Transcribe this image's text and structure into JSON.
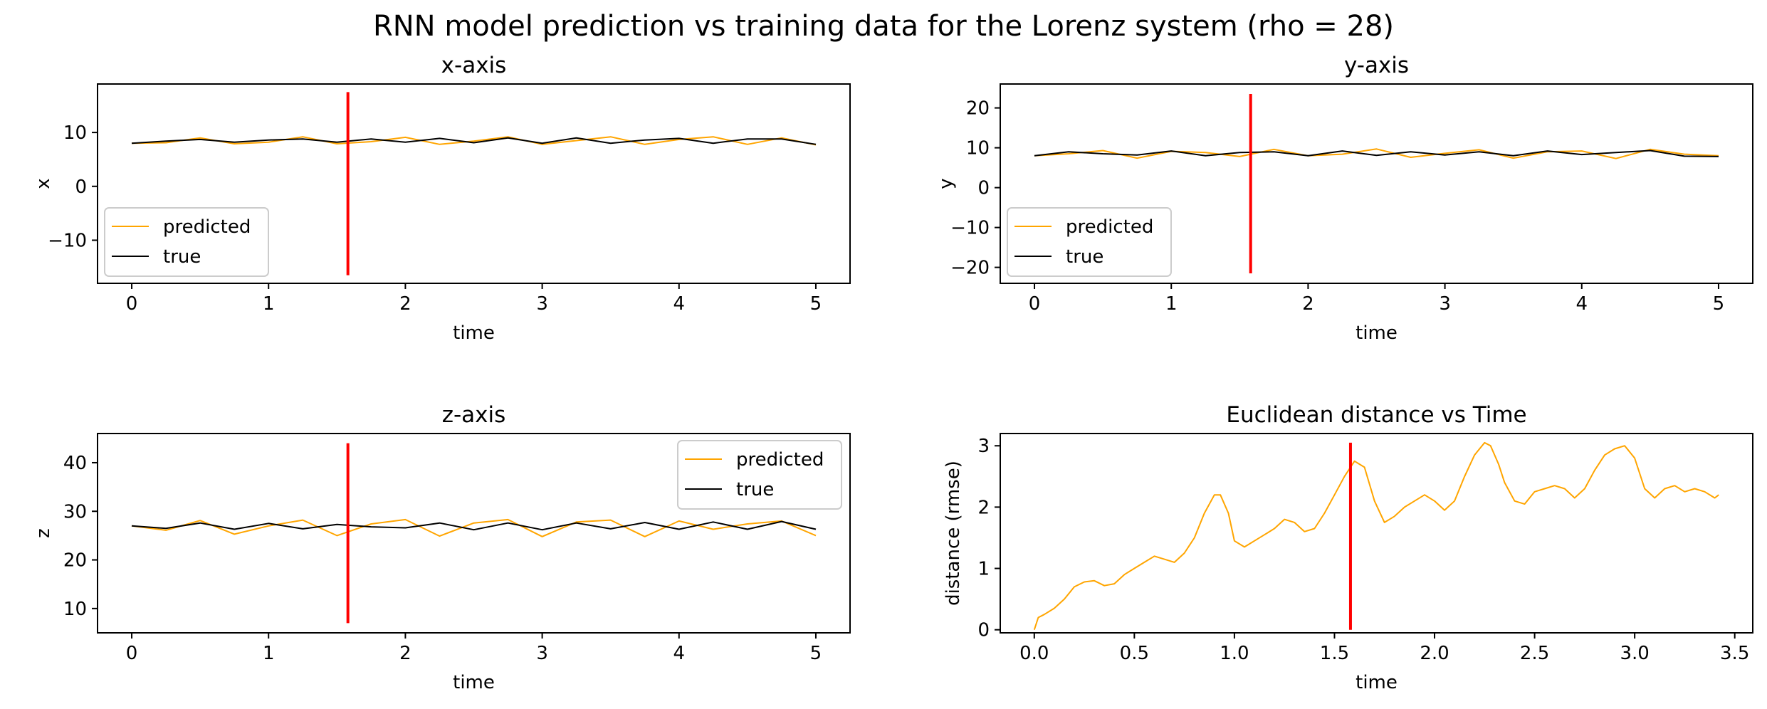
{
  "figure": {
    "suptitle": "RNN model prediction vs training data for the Lorenz system (rho = 28)",
    "colors": {
      "predicted": "#ffa500",
      "true": "#000000",
      "marker": "#ff0000"
    }
  },
  "chart_data": [
    {
      "type": "line",
      "title": "x-axis",
      "xlabel": "time",
      "ylabel": "x",
      "xlim": [
        -0.25,
        5.25
      ],
      "ylim": [
        -18,
        19
      ],
      "xticks": [
        0,
        1,
        2,
        3,
        4,
        5
      ],
      "yticks": [
        -10,
        0,
        10
      ],
      "ytick_labels": [
        "−10",
        "0",
        "10"
      ],
      "grid": false,
      "legend": "lower-left",
      "vline": {
        "x": 1.58,
        "y": [
          -16.5,
          17.5
        ]
      },
      "series": [
        {
          "name": "predicted",
          "color": "#ffa500",
          "x": [
            0,
            0.25,
            0.5,
            0.75,
            1,
            1.25,
            1.5,
            1.75,
            2,
            2.25,
            2.5,
            2.75,
            3,
            3.25,
            3.5,
            3.75,
            4,
            4.25,
            4.5,
            4.75,
            5
          ],
          "y": [
            8.0,
            8.1,
            9.0,
            7.9,
            8.2,
            9.2,
            7.9,
            8.3,
            9.1,
            7.8,
            8.4,
            9.2,
            7.8,
            8.5,
            9.2,
            7.8,
            8.7,
            9.2,
            7.8,
            9.0,
            7.7
          ]
        },
        {
          "name": "true",
          "color": "#000000",
          "x": [
            0,
            0.25,
            0.5,
            0.75,
            1,
            1.25,
            1.5,
            1.75,
            2,
            2.25,
            2.5,
            2.75,
            3,
            3.25,
            3.5,
            3.75,
            4,
            4.25,
            4.5,
            4.75,
            5
          ],
          "y": [
            8.0,
            8.4,
            8.7,
            8.2,
            8.6,
            8.8,
            8.2,
            8.8,
            8.2,
            8.9,
            8.1,
            9.0,
            8.0,
            9.0,
            8.0,
            8.6,
            8.9,
            8.0,
            8.8,
            8.8,
            7.8
          ]
        }
      ]
    },
    {
      "type": "line",
      "title": "y-axis",
      "xlabel": "time",
      "ylabel": "y",
      "xlim": [
        -0.25,
        5.25
      ],
      "ylim": [
        -24,
        26
      ],
      "xticks": [
        0,
        1,
        2,
        3,
        4,
        5
      ],
      "yticks": [
        -20,
        -10,
        0,
        10,
        20
      ],
      "ytick_labels": [
        "−20",
        "−10",
        "0",
        "10",
        "20"
      ],
      "grid": false,
      "legend": "lower-left",
      "vline": {
        "x": 1.58,
        "y": [
          -21.5,
          23.5
        ]
      },
      "series": [
        {
          "name": "predicted",
          "color": "#ffa500",
          "x": [
            0,
            0.25,
            0.5,
            0.75,
            1,
            1.25,
            1.5,
            1.75,
            2,
            2.25,
            2.5,
            2.75,
            3,
            3.25,
            3.5,
            3.75,
            4,
            4.25,
            4.5,
            4.75,
            5
          ],
          "y": [
            8.0,
            8.5,
            9.3,
            7.4,
            9.1,
            8.8,
            7.8,
            9.6,
            8.0,
            8.4,
            9.7,
            7.6,
            8.6,
            9.5,
            7.4,
            9.0,
            9.2,
            7.3,
            9.6,
            8.4,
            8.0
          ]
        },
        {
          "name": "true",
          "color": "#000000",
          "x": [
            0,
            0.25,
            0.5,
            0.75,
            1,
            1.25,
            1.5,
            1.75,
            2,
            2.25,
            2.5,
            2.75,
            3,
            3.25,
            3.5,
            3.75,
            4,
            4.25,
            4.5,
            4.75,
            5
          ],
          "y": [
            8.0,
            9.0,
            8.5,
            8.2,
            9.2,
            8.0,
            8.8,
            9.0,
            8.0,
            9.2,
            8.1,
            9.0,
            8.2,
            9.0,
            8.0,
            9.2,
            8.3,
            8.8,
            9.3,
            7.9,
            7.8
          ]
        }
      ]
    },
    {
      "type": "line",
      "title": "z-axis",
      "xlabel": "time",
      "ylabel": "z",
      "xlim": [
        -0.25,
        5.25
      ],
      "ylim": [
        5,
        46
      ],
      "xticks": [
        0,
        1,
        2,
        3,
        4,
        5
      ],
      "yticks": [
        10,
        20,
        30,
        40
      ],
      "ytick_labels": [
        "10",
        "20",
        "30",
        "40"
      ],
      "grid": false,
      "legend": "upper-right",
      "vline": {
        "x": 1.58,
        "y": [
          7,
          44
        ]
      },
      "series": [
        {
          "name": "predicted",
          "color": "#ffa500",
          "x": [
            0,
            0.25,
            0.5,
            0.75,
            1,
            1.25,
            1.5,
            1.75,
            2,
            2.25,
            2.5,
            2.75,
            3,
            3.25,
            3.5,
            3.75,
            4,
            4.25,
            4.5,
            4.75,
            5
          ],
          "y": [
            27.0,
            26.1,
            28.1,
            25.3,
            27.0,
            28.2,
            25.0,
            27.4,
            28.3,
            24.9,
            27.6,
            28.3,
            24.8,
            27.8,
            28.2,
            24.8,
            28.0,
            26.3,
            27.4,
            28.0,
            25.0
          ]
        },
        {
          "name": "true",
          "color": "#000000",
          "x": [
            0,
            0.25,
            0.5,
            0.75,
            1,
            1.25,
            1.5,
            1.75,
            2,
            2.25,
            2.5,
            2.75,
            3,
            3.25,
            3.5,
            3.75,
            4,
            4.25,
            4.5,
            4.75,
            5
          ],
          "y": [
            27.0,
            26.5,
            27.6,
            26.3,
            27.5,
            26.4,
            27.3,
            26.8,
            26.6,
            27.6,
            26.2,
            27.6,
            26.2,
            27.6,
            26.4,
            27.7,
            26.3,
            27.8,
            26.3,
            27.9,
            26.3
          ]
        }
      ]
    },
    {
      "type": "line",
      "title": "Euclidean distance vs Time",
      "xlabel": "time",
      "ylabel": "distance (rmse)",
      "xlim": [
        -0.17,
        3.59
      ],
      "ylim": [
        -0.05,
        3.2
      ],
      "xticks": [
        0,
        0.5,
        1,
        1.5,
        2,
        2.5,
        3,
        3.5
      ],
      "xtick_labels": [
        "0.0",
        "0.5",
        "1.0",
        "1.5",
        "2.0",
        "2.5",
        "3.0",
        "3.5"
      ],
      "yticks": [
        0,
        1,
        2,
        3
      ],
      "ytick_labels": [
        "0",
        "1",
        "2",
        "3"
      ],
      "grid": false,
      "vline": {
        "x": 1.58,
        "y": [
          0,
          3.05
        ]
      },
      "series": [
        {
          "name": "",
          "color": "#ffa500",
          "x": [
            0,
            0.02,
            0.05,
            0.1,
            0.15,
            0.2,
            0.25,
            0.3,
            0.35,
            0.4,
            0.45,
            0.5,
            0.55,
            0.6,
            0.65,
            0.7,
            0.75,
            0.8,
            0.85,
            0.9,
            0.93,
            0.97,
            1.0,
            1.05,
            1.1,
            1.15,
            1.2,
            1.25,
            1.3,
            1.35,
            1.4,
            1.45,
            1.5,
            1.55,
            1.6,
            1.65,
            1.7,
            1.75,
            1.8,
            1.85,
            1.9,
            1.95,
            2.0,
            2.05,
            2.1,
            2.15,
            2.2,
            2.25,
            2.28,
            2.32,
            2.35,
            2.4,
            2.45,
            2.5,
            2.55,
            2.6,
            2.65,
            2.7,
            2.75,
            2.8,
            2.85,
            2.9,
            2.95,
            3.0,
            3.05,
            3.1,
            3.15,
            3.2,
            3.25,
            3.3,
            3.35,
            3.4,
            3.42
          ],
          "y": [
            0.0,
            0.2,
            0.25,
            0.35,
            0.5,
            0.7,
            0.78,
            0.8,
            0.72,
            0.75,
            0.9,
            1.0,
            1.1,
            1.2,
            1.15,
            1.1,
            1.25,
            1.5,
            1.9,
            2.2,
            2.2,
            1.9,
            1.45,
            1.35,
            1.45,
            1.55,
            1.65,
            1.8,
            1.75,
            1.6,
            1.65,
            1.9,
            2.2,
            2.5,
            2.75,
            2.65,
            2.1,
            1.75,
            1.85,
            2.0,
            2.1,
            2.2,
            2.1,
            1.95,
            2.1,
            2.5,
            2.85,
            3.05,
            3.0,
            2.7,
            2.4,
            2.1,
            2.05,
            2.25,
            2.3,
            2.35,
            2.3,
            2.15,
            2.3,
            2.6,
            2.85,
            2.95,
            3.0,
            2.8,
            2.3,
            2.15,
            2.3,
            2.35,
            2.25,
            2.3,
            2.25,
            2.15,
            2.2
          ]
        }
      ]
    }
  ]
}
